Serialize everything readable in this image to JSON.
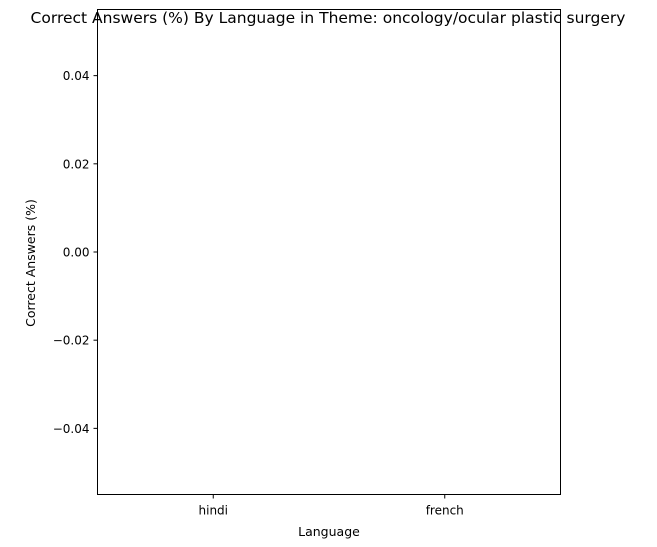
{
  "chart_data": {
    "type": "bar",
    "title": "Correct Answers (%) By Language in Theme: oncology/ocular plastic surgery",
    "xlabel": "Language",
    "ylabel": "Correct Answers (%)",
    "categories": [
      "hindi",
      "french"
    ],
    "values": [
      0,
      0
    ],
    "ylim": [
      -0.055,
      0.055
    ],
    "yticks": [
      0.04,
      0.02,
      0.0,
      -0.02,
      -0.04
    ],
    "ytick_labels": [
      "0.04",
      "0.02",
      "0.00",
      "−0.02",
      "−0.04"
    ],
    "grid": false,
    "legend": "none",
    "bar_color": "#1f77b4"
  }
}
